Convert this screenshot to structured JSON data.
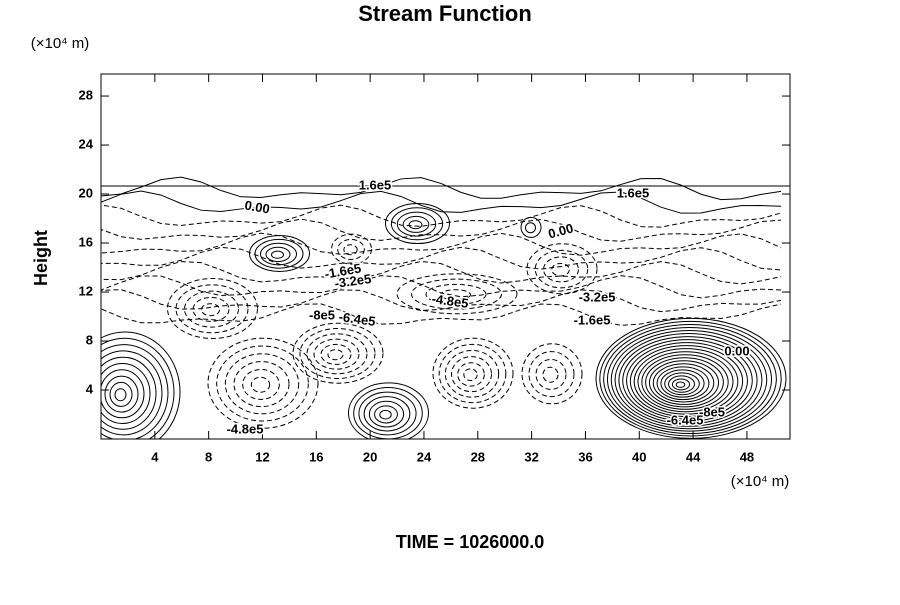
{
  "chart_data": {
    "type": "contour",
    "title": "Stream Function",
    "y_label": "Height",
    "x_units": "(×10⁴ m)",
    "y_units": "(×10⁴ m)",
    "xlim": [
      0,
      51.2
    ],
    "xticks": [
      4,
      8,
      12,
      16,
      20,
      24,
      28,
      32,
      36,
      40,
      44,
      48
    ],
    "ylim": [
      0,
      29.8
    ],
    "yticks": [
      4,
      8,
      12,
      16,
      20,
      24,
      28
    ],
    "contour_labels": [
      "1.6e5",
      "1.6e5",
      "0.00",
      "0.00",
      "-1.6e5",
      "-3.2e5",
      "-4.8e5",
      "-3.2e5",
      "-1.6e5",
      "-8e5",
      "-6.4e5",
      "0.00",
      "-4.8e5",
      "-6.4e5",
      "-8e5"
    ],
    "footer": "TIME = 1026000.0"
  }
}
